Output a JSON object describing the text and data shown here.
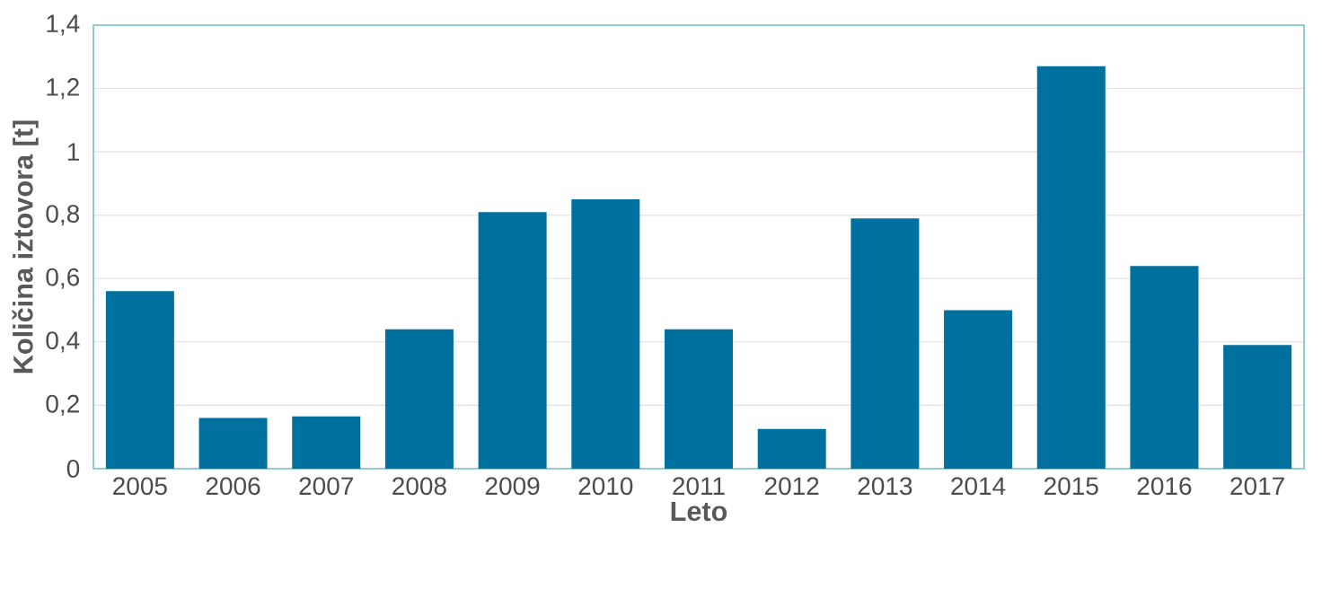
{
  "chart_data": {
    "type": "bar",
    "xlabel": "Leto",
    "ylabel": "Količina iztovora [t]",
    "categories": [
      "2005",
      "2006",
      "2007",
      "2008",
      "2009",
      "2010",
      "2011",
      "2012",
      "2013",
      "2014",
      "2015",
      "2016",
      "2017"
    ],
    "values": [
      0.56,
      0.16,
      0.165,
      0.44,
      0.81,
      0.85,
      0.44,
      0.125,
      0.79,
      0.5,
      1.27,
      0.64,
      0.39
    ],
    "color": "#00709e",
    "ylim": [
      0,
      1.4
    ],
    "yticks": [
      0,
      {
        "value": 0.2,
        "label": "0,2"
      },
      {
        "value": 0.4,
        "label": "0,4"
      },
      {
        "value": 0.6,
        "label": "0,6"
      },
      {
        "value": 0.8,
        "label": "0,8"
      },
      1,
      {
        "value": 1.2,
        "label": "1,2"
      },
      {
        "value": 1.4,
        "label": "1,4"
      }
    ],
    "grid": "y"
  }
}
